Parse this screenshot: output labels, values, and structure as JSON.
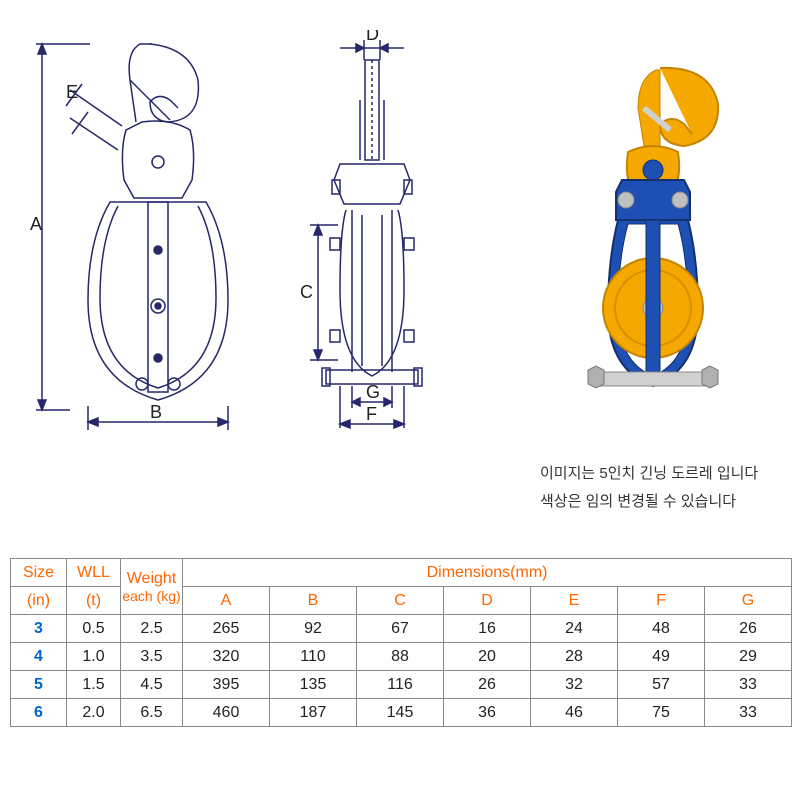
{
  "diagrams": {
    "labels": {
      "A": "A",
      "B": "B",
      "C": "C",
      "D": "D",
      "E": "E",
      "F": "F",
      "G": "G"
    },
    "stroke": "#252560",
    "stroke_width": 1.5
  },
  "photo": {
    "hook_color": "#f5a800",
    "frame_color": "#1e4fb3",
    "sheave_color": "#f5a800",
    "bolt_color": "#c0c0c0"
  },
  "captions": {
    "line1": "이미지는 5인치 긴닝 도르레 입니다",
    "line2": "색상은 임의 변경될 수 있습니다"
  },
  "table": {
    "header_color": "#ff6600",
    "headers": {
      "size_top": "Size",
      "size_bot": "(in)",
      "wll_top": "WLL",
      "wll_bot": "(t)",
      "weight_top": "Weight",
      "weight_bot": "each (kg)",
      "dims": "Dimensions(mm)",
      "cols": [
        "A",
        "B",
        "C",
        "D",
        "E",
        "F",
        "G"
      ]
    },
    "rows": [
      {
        "size": "3",
        "wll": "0.5",
        "wt": "2.5",
        "dims": [
          "265",
          "92",
          "67",
          "16",
          "24",
          "48",
          "26"
        ]
      },
      {
        "size": "4",
        "wll": "1.0",
        "wt": "3.5",
        "dims": [
          "320",
          "110",
          "88",
          "20",
          "28",
          "49",
          "29"
        ]
      },
      {
        "size": "5",
        "wll": "1.5",
        "wt": "4.5",
        "dims": [
          "395",
          "135",
          "116",
          "26",
          "32",
          "57",
          "33"
        ]
      },
      {
        "size": "6",
        "wll": "2.0",
        "wt": "6.5",
        "dims": [
          "460",
          "187",
          "145",
          "36",
          "46",
          "75",
          "33"
        ]
      }
    ]
  }
}
